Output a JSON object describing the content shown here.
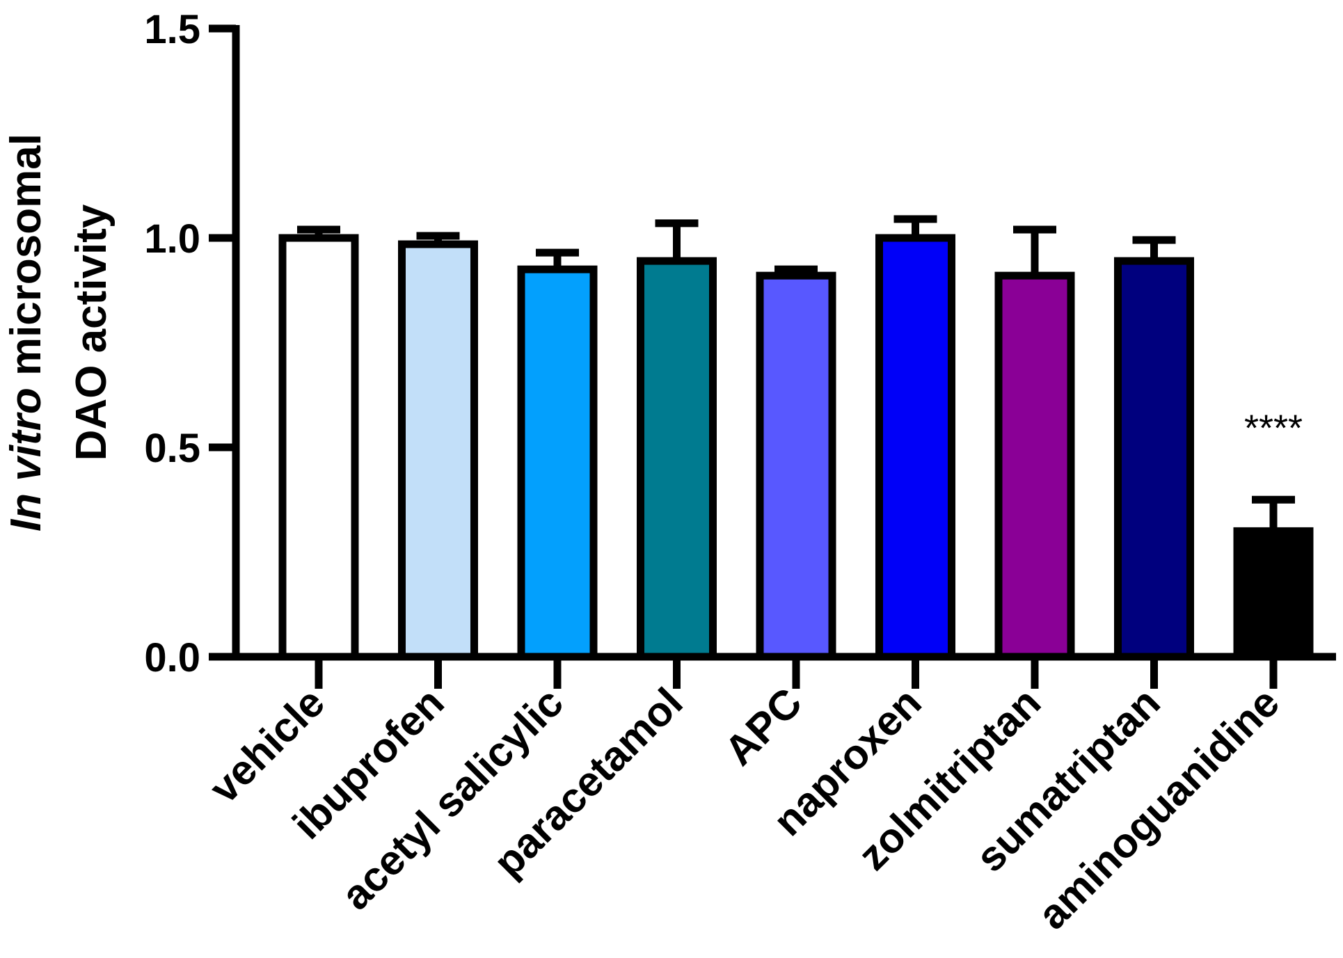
{
  "chart_data": {
    "type": "bar",
    "title": "",
    "xlabel": "",
    "ylabel_italic": "In vitro",
    "ylabel_line1_rest": " microsomal",
    "ylabel_line2": "DAO activity",
    "ylim": [
      0,
      1.5
    ],
    "yticks": [
      "0.0",
      "0.5",
      "1.0",
      "1.5"
    ],
    "categories": [
      "vehicle",
      "ibuprofen",
      "acetyl salicylic",
      "paracetamol",
      "APC",
      "naproxen",
      "zolmitriptan",
      "sumatriptan",
      "aminoguanidine"
    ],
    "values": [
      1.0,
      0.985,
      0.925,
      0.945,
      0.91,
      1.0,
      0.91,
      0.945,
      0.3
    ],
    "errors": [
      0.02,
      0.02,
      0.04,
      0.09,
      0.015,
      0.045,
      0.11,
      0.05,
      0.075
    ],
    "colors": [
      "#FFFFFF",
      "#C2DFF9",
      "#03A0FD",
      "#007B90",
      "#5858FF",
      "#0000F8",
      "#8A0096",
      "#00007E",
      "#000000"
    ],
    "annotations": [
      {
        "category": "aminoguanidine",
        "text": "****"
      }
    ]
  }
}
